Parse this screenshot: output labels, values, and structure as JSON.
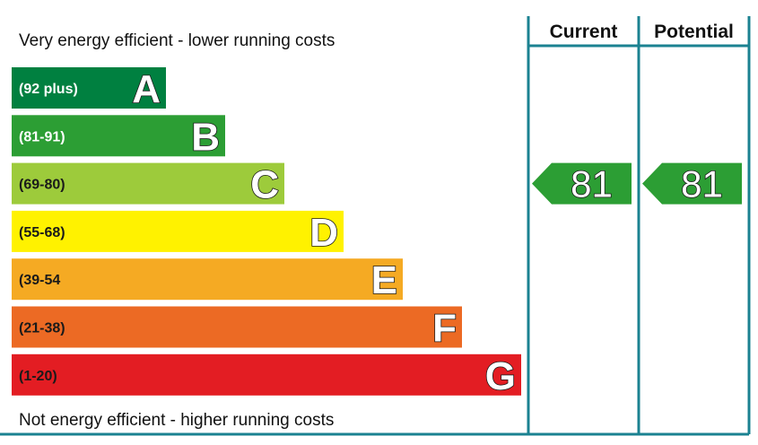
{
  "chart_data": {
    "type": "bar",
    "top_caption": "Very energy efficient - lower running costs",
    "bottom_caption": "Not energy efficient - higher running costs",
    "bands": [
      {
        "letter": "A",
        "range": "(92 plus)",
        "color": "#008040",
        "range_text_color": "#ffffff"
      },
      {
        "letter": "B",
        "range": "(81-91)",
        "color": "#2c9e34",
        "range_text_color": "#ffffff"
      },
      {
        "letter": "C",
        "range": "(69-80)",
        "color": "#9dcb3b",
        "range_text_color": "#1a1a1a"
      },
      {
        "letter": "D",
        "range": "(55-68)",
        "color": "#fff200",
        "range_text_color": "#1a1a1a"
      },
      {
        "letter": "E",
        "range": "(39-54",
        "color": "#f5aa23",
        "range_text_color": "#1a1a1a"
      },
      {
        "letter": "F",
        "range": "(21-38)",
        "color": "#ec6a24",
        "range_text_color": "#1a1a1a"
      },
      {
        "letter": "G",
        "range": "(1-20)",
        "color": "#e31d23",
        "range_text_color": "#1a1a1a"
      }
    ],
    "columns": [
      {
        "label": "Current",
        "value": 81,
        "color": "#2c9e34"
      },
      {
        "label": "Potential",
        "value": 81,
        "color": "#2c9e34"
      }
    ],
    "frame_color": "#1b8291"
  }
}
